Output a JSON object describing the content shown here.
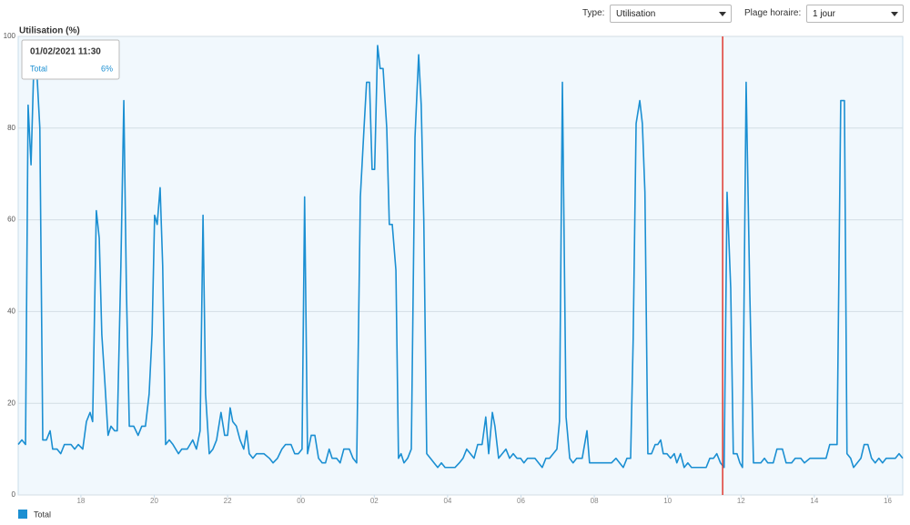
{
  "controls": {
    "type_label": "Type:",
    "type_value": "Utilisation",
    "range_label": "Plage horaire:",
    "range_value": "1 jour"
  },
  "chart_data": {
    "type": "line",
    "title": "Utilisation (%)",
    "x": [
      16.29,
      16.39,
      16.49,
      16.56,
      16.64,
      16.71,
      16.78,
      16.88,
      16.96,
      17.06,
      17.16,
      17.23,
      17.35,
      17.45,
      17.55,
      17.73,
      17.83,
      17.93,
      18.05,
      18.15,
      18.25,
      18.32,
      18.42,
      18.5,
      18.57,
      18.65,
      18.74,
      18.82,
      18.92,
      18.99,
      19.09,
      19.17,
      19.24,
      19.32,
      19.44,
      19.56,
      19.66,
      19.76,
      19.86,
      19.94,
      20.01,
      20.08,
      20.16,
      20.23,
      20.31,
      20.41,
      20.51,
      20.66,
      20.75,
      20.9,
      21.05,
      21.15,
      21.25,
      21.33,
      21.4,
      21.5,
      21.6,
      21.7,
      21.82,
      21.92,
      22.0,
      22.07,
      22.14,
      22.24,
      22.34,
      22.44,
      22.52,
      22.59,
      22.69,
      22.79,
      22.99,
      23.14,
      23.24,
      23.36,
      23.48,
      23.58,
      23.73,
      23.83,
      23.93,
      24.03,
      24.1,
      24.18,
      24.28,
      24.38,
      24.48,
      24.58,
      24.67,
      24.77,
      24.85,
      24.97,
      25.07,
      25.17,
      25.32,
      25.42,
      25.52,
      25.62,
      25.72,
      25.79,
      25.87,
      25.94,
      26.01,
      26.09,
      26.16,
      26.24,
      26.34,
      26.41,
      26.49,
      26.59,
      26.66,
      26.73,
      26.81,
      26.91,
      27.01,
      27.11,
      27.21,
      27.28,
      27.35,
      27.43,
      27.53,
      27.63,
      27.73,
      27.83,
      27.93,
      28.2,
      28.32,
      28.42,
      28.52,
      28.62,
      28.72,
      28.82,
      28.94,
      29.04,
      29.12,
      29.22,
      29.29,
      29.39,
      29.49,
      29.59,
      29.69,
      29.79,
      29.89,
      29.99,
      30.08,
      30.18,
      30.38,
      30.48,
      30.58,
      30.68,
      30.78,
      30.88,
      30.98,
      31.05,
      31.13,
      31.23,
      31.33,
      31.42,
      31.52,
      31.67,
      31.8,
      31.87,
      32.17,
      32.47,
      32.59,
      32.69,
      32.79,
      32.89,
      32.99,
      33.06,
      33.14,
      33.24,
      33.31,
      33.38,
      33.46,
      33.56,
      33.66,
      33.73,
      33.81,
      33.88,
      33.98,
      34.08,
      34.18,
      34.25,
      34.35,
      34.45,
      34.55,
      34.65,
      34.9,
      35.05,
      35.15,
      35.25,
      35.34,
      35.44,
      35.54,
      35.62,
      35.72,
      35.79,
      35.89,
      35.97,
      36.04,
      36.14,
      36.24,
      36.34,
      36.54,
      36.64,
      36.73,
      36.88,
      36.98,
      37.13,
      37.23,
      37.38,
      37.48,
      37.63,
      37.73,
      37.88,
      38.12,
      38.32,
      38.42,
      38.62,
      38.72,
      38.82,
      38.89,
      38.99,
      39.07,
      39.17,
      39.27,
      39.36,
      39.46,
      39.56,
      39.66,
      39.76,
      39.86,
      39.96,
      40.21,
      40.31,
      40.41
    ],
    "series": [
      {
        "name": "Total",
        "color": "#1b8fd2",
        "values": [
          11,
          12,
          11,
          85,
          72,
          92,
          95,
          80,
          12,
          12,
          14,
          10,
          10,
          9,
          11,
          11,
          10,
          11,
          10,
          16,
          18,
          16,
          62,
          56,
          35,
          25,
          13,
          15,
          14,
          14,
          50,
          86,
          45,
          15,
          15,
          13,
          15,
          15,
          22,
          35,
          61,
          59,
          67,
          50,
          11,
          12,
          11,
          9,
          10,
          10,
          12,
          10,
          14,
          61,
          22,
          9,
          10,
          12,
          18,
          13,
          13,
          19,
          16,
          15,
          12,
          10,
          14,
          9,
          8,
          9,
          9,
          8,
          7,
          8,
          10,
          11,
          11,
          9,
          9,
          10,
          65,
          9,
          13,
          13,
          8,
          7,
          7,
          10,
          8,
          8,
          7,
          10,
          10,
          8,
          7,
          65,
          80,
          90,
          90,
          71,
          71,
          98,
          93,
          93,
          80,
          59,
          59,
          49,
          8,
          9,
          7,
          8,
          10,
          78,
          96,
          85,
          60,
          9,
          8,
          7,
          6,
          7,
          6,
          6,
          7,
          8,
          10,
          9,
          8,
          11,
          11,
          17,
          9,
          18,
          15,
          8,
          9,
          10,
          8,
          9,
          8,
          8,
          7,
          8,
          8,
          7,
          6,
          8,
          8,
          9,
          10,
          16,
          90,
          17,
          8,
          7,
          8,
          8,
          14,
          7,
          7,
          7,
          8,
          7,
          6,
          8,
          8,
          34,
          81,
          86,
          81,
          66,
          9,
          9,
          11,
          11,
          12,
          9,
          9,
          8,
          9,
          7,
          9,
          6,
          7,
          6,
          6,
          6,
          8,
          8,
          9,
          7,
          6,
          66,
          45,
          9,
          9,
          7,
          6,
          90,
          44,
          7,
          7,
          8,
          7,
          7,
          10,
          10,
          7,
          7,
          8,
          8,
          7,
          8,
          8,
          8,
          11,
          11,
          86,
          86,
          9,
          8,
          6,
          7,
          8,
          11,
          11,
          8,
          7,
          8,
          7,
          8,
          8,
          9,
          8
        ]
      }
    ],
    "xlim": [
      16.29,
      40.41
    ],
    "xticks": [
      {
        "value": 18,
        "label": "18"
      },
      {
        "value": 20,
        "label": "20"
      },
      {
        "value": 22,
        "label": "22"
      },
      {
        "value": 24,
        "label": "00"
      },
      {
        "value": 26,
        "label": "02"
      },
      {
        "value": 28,
        "label": "04"
      },
      {
        "value": 30,
        "label": "06"
      },
      {
        "value": 32,
        "label": "08"
      },
      {
        "value": 34,
        "label": "10"
      },
      {
        "value": 36,
        "label": "12"
      },
      {
        "value": 38,
        "label": "14"
      },
      {
        "value": 40,
        "label": "16"
      }
    ],
    "ylim": [
      0,
      100
    ],
    "yticks": [
      0,
      20,
      40,
      60,
      80,
      100
    ],
    "grid": true,
    "tooltip": {
      "x": 35.5,
      "label": "01/02/2021 11:30",
      "value": 6,
      "value_label": "6%"
    }
  }
}
